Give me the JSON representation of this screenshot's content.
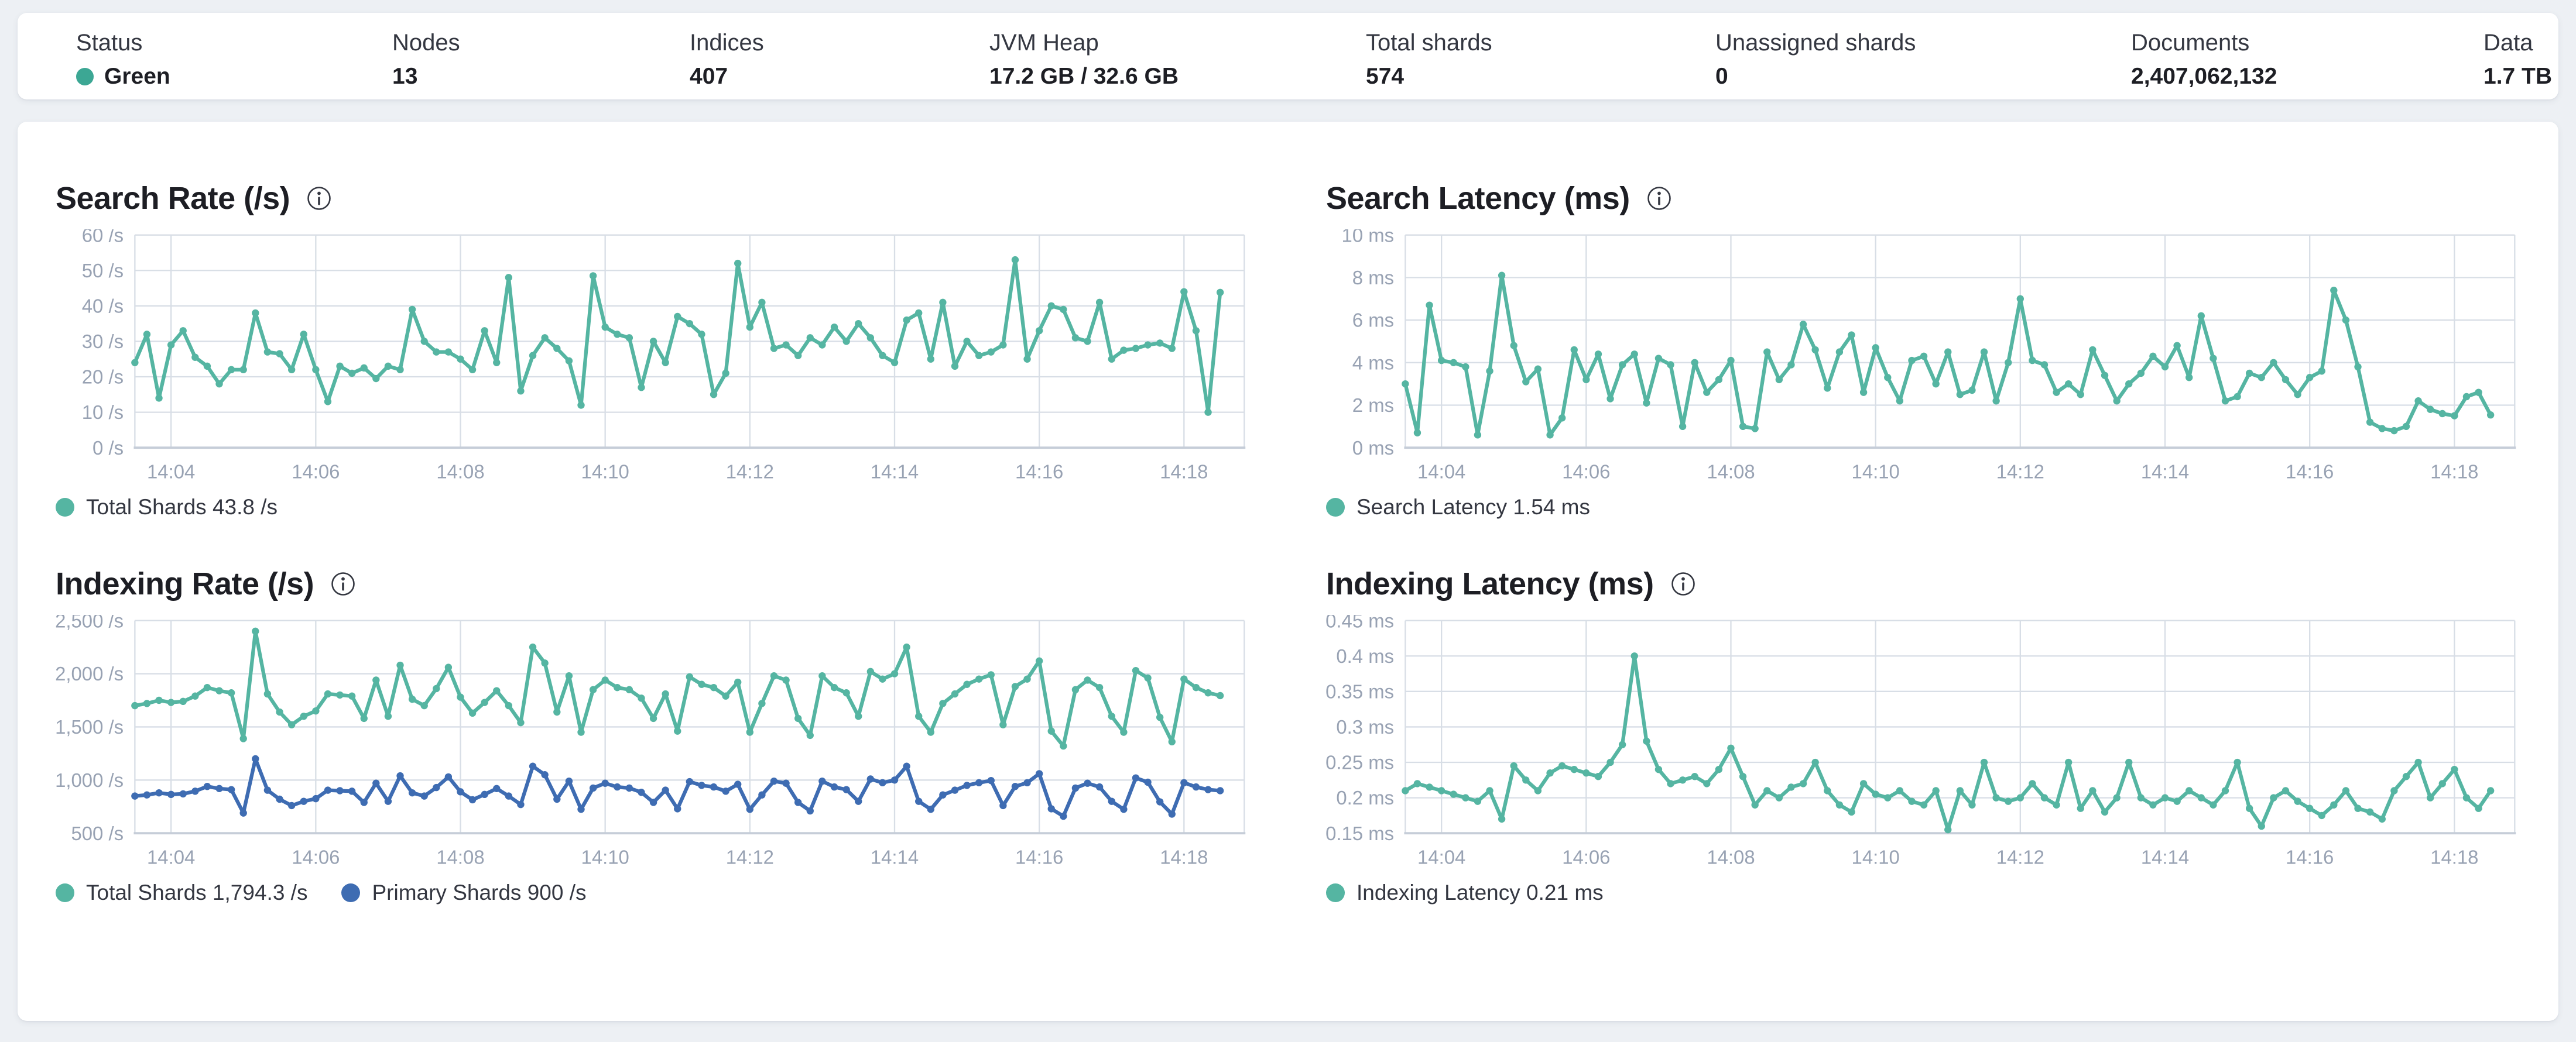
{
  "colors": {
    "teal": "#55B5A2",
    "blue": "#3E6CB2",
    "status_green": "#3CA794",
    "axis_text": "#98A2B3",
    "grid": "#D8DEE6",
    "axis_line": "#C6CDD8",
    "title": "#1D1E24",
    "label": "#343741"
  },
  "overview": {
    "stats": [
      {
        "label": "Status",
        "value": "Green",
        "type": "status"
      },
      {
        "label": "Nodes",
        "value": "13"
      },
      {
        "label": "Indices",
        "value": "407"
      },
      {
        "label": "JVM Heap",
        "value": "17.2 GB / 32.6 GB"
      },
      {
        "label": "Total shards",
        "value": "574"
      },
      {
        "label": "Unassigned shards",
        "value": "0"
      },
      {
        "label": "Documents",
        "value": "2,407,062,132"
      },
      {
        "label": "Data",
        "value": "1.7 TB"
      }
    ]
  },
  "chart_data": [
    {
      "type": "line",
      "title": "Search Rate (/s)",
      "ylabel": "/s",
      "y_min": 0,
      "y_max": 60,
      "y_ticks": [
        {
          "v": 60,
          "label": "60 /s"
        },
        {
          "v": 50,
          "label": "50 /s"
        },
        {
          "v": 40,
          "label": "40 /s"
        },
        {
          "v": 30,
          "label": "30 /s"
        },
        {
          "v": 20,
          "label": "20 /s"
        },
        {
          "v": 10,
          "label": "10 /s"
        },
        {
          "v": 0,
          "label": "0 /s"
        }
      ],
      "x_start": "14:03:30",
      "point_interval_s": 10,
      "x_span_s": 920,
      "x_ticks": [
        {
          "t": 30,
          "label": "14:04"
        },
        {
          "t": 150,
          "label": "14:06"
        },
        {
          "t": 270,
          "label": "14:08"
        },
        {
          "t": 390,
          "label": "14:10"
        },
        {
          "t": 510,
          "label": "14:12"
        },
        {
          "t": 630,
          "label": "14:14"
        },
        {
          "t": 750,
          "label": "14:16"
        },
        {
          "t": 870,
          "label": "14:18"
        }
      ],
      "grid": true,
      "legend_position": "bottom",
      "series": [
        {
          "name": "Total Shards",
          "current": "43.8 /s",
          "color": "#55B5A2",
          "values": [
            24,
            32,
            14,
            29,
            33,
            25.5,
            23,
            18,
            22,
            22,
            38,
            27,
            26.5,
            22,
            32,
            22,
            13,
            23,
            21,
            22.5,
            19.5,
            23,
            22,
            39,
            30,
            27,
            27,
            25,
            22,
            33,
            24,
            48,
            16,
            26,
            31,
            28,
            24.5,
            12,
            48.5,
            34,
            32,
            31,
            17,
            30,
            24,
            37,
            35,
            32,
            15,
            21,
            52,
            34,
            41,
            28,
            29,
            26,
            31,
            29,
            34,
            30,
            35,
            31,
            26,
            24,
            36,
            38,
            25,
            41,
            23,
            30,
            26,
            27,
            29,
            53,
            25,
            33,
            40,
            39,
            31,
            30,
            41,
            25,
            27.5,
            28,
            29,
            29.5,
            28,
            44,
            33,
            10,
            43.8
          ]
        }
      ],
      "legend": [
        {
          "label": "Total Shards 43.8 /s",
          "color": "#55B5A2"
        }
      ]
    },
    {
      "type": "line",
      "title": "Search Latency (ms)",
      "ylabel": "ms",
      "y_min": 0,
      "y_max": 10,
      "y_ticks": [
        {
          "v": 10,
          "label": "10 ms"
        },
        {
          "v": 8,
          "label": "8 ms"
        },
        {
          "v": 6,
          "label": "6 ms"
        },
        {
          "v": 4,
          "label": "4 ms"
        },
        {
          "v": 2,
          "label": "2 ms"
        },
        {
          "v": 0,
          "label": "0 ms"
        }
      ],
      "x_start": "14:03:30",
      "point_interval_s": 10,
      "x_span_s": 920,
      "x_ticks": [
        {
          "t": 30,
          "label": "14:04"
        },
        {
          "t": 150,
          "label": "14:06"
        },
        {
          "t": 270,
          "label": "14:08"
        },
        {
          "t": 390,
          "label": "14:10"
        },
        {
          "t": 510,
          "label": "14:12"
        },
        {
          "t": 630,
          "label": "14:14"
        },
        {
          "t": 750,
          "label": "14:16"
        },
        {
          "t": 870,
          "label": "14:18"
        }
      ],
      "grid": true,
      "legend_position": "bottom",
      "series": [
        {
          "name": "Search Latency",
          "current": "1.54 ms",
          "color": "#55B5A2",
          "values": [
            3.0,
            0.7,
            6.7,
            4.1,
            4.0,
            3.8,
            0.6,
            3.6,
            8.1,
            4.8,
            3.1,
            3.7,
            0.6,
            1.4,
            4.6,
            3.2,
            4.4,
            2.3,
            3.9,
            4.4,
            2.1,
            4.2,
            3.9,
            1.0,
            4.0,
            2.6,
            3.2,
            4.1,
            1.0,
            0.9,
            4.5,
            3.2,
            3.9,
            5.8,
            4.6,
            2.8,
            4.5,
            5.3,
            2.6,
            4.7,
            3.3,
            2.2,
            4.1,
            4.3,
            3.0,
            4.5,
            2.5,
            2.7,
            4.5,
            2.2,
            4.0,
            7.0,
            4.1,
            3.9,
            2.6,
            3.0,
            2.5,
            4.6,
            3.4,
            2.2,
            3.0,
            3.5,
            4.3,
            3.8,
            4.8,
            3.3,
            6.2,
            4.2,
            2.2,
            2.4,
            3.5,
            3.3,
            4.0,
            3.2,
            2.5,
            3.3,
            3.6,
            7.4,
            6.0,
            3.8,
            1.2,
            0.9,
            0.8,
            1.0,
            2.2,
            1.8,
            1.6,
            1.5,
            2.4,
            2.6,
            1.54
          ]
        }
      ],
      "legend": [
        {
          "label": "Search Latency 1.54 ms",
          "color": "#55B5A2"
        }
      ]
    },
    {
      "type": "line",
      "title": "Indexing Rate (/s)",
      "ylabel": "/s",
      "y_min": 500,
      "y_max": 2500,
      "y_ticks": [
        {
          "v": 2500,
          "label": "2,500 /s"
        },
        {
          "v": 2000,
          "label": "2,000 /s"
        },
        {
          "v": 1500,
          "label": "1,500 /s"
        },
        {
          "v": 1000,
          "label": "1,000 /s"
        },
        {
          "v": 500,
          "label": "500 /s"
        }
      ],
      "x_start": "14:03:30",
      "point_interval_s": 10,
      "x_span_s": 920,
      "x_ticks": [
        {
          "t": 30,
          "label": "14:04"
        },
        {
          "t": 150,
          "label": "14:06"
        },
        {
          "t": 270,
          "label": "14:08"
        },
        {
          "t": 390,
          "label": "14:10"
        },
        {
          "t": 510,
          "label": "14:12"
        },
        {
          "t": 630,
          "label": "14:14"
        },
        {
          "t": 750,
          "label": "14:16"
        },
        {
          "t": 870,
          "label": "14:18"
        }
      ],
      "grid": true,
      "legend_position": "bottom",
      "series": [
        {
          "name": "Total Shards",
          "current": "1,794.3 /s",
          "color": "#55B5A2",
          "values": [
            1700,
            1720,
            1750,
            1730,
            1740,
            1790,
            1870,
            1840,
            1820,
            1390,
            2400,
            1810,
            1640,
            1520,
            1600,
            1650,
            1810,
            1800,
            1790,
            1580,
            1940,
            1600,
            2080,
            1760,
            1700,
            1860,
            2060,
            1780,
            1630,
            1730,
            1840,
            1700,
            1540,
            2250,
            2100,
            1640,
            1980,
            1450,
            1850,
            1940,
            1870,
            1850,
            1770,
            1580,
            1810,
            1460,
            1970,
            1900,
            1870,
            1790,
            1920,
            1450,
            1720,
            1980,
            1940,
            1580,
            1420,
            1980,
            1870,
            1820,
            1600,
            2020,
            1950,
            2000,
            2250,
            1600,
            1450,
            1720,
            1810,
            1900,
            1950,
            1990,
            1520,
            1880,
            1950,
            2120,
            1460,
            1320,
            1850,
            1940,
            1870,
            1600,
            1450,
            2030,
            1960,
            1590,
            1360,
            1950,
            1870,
            1820,
            1794.3
          ]
        },
        {
          "name": "Primary Shards",
          "current": "900 /s",
          "color": "#3E6CB2",
          "values": [
            850,
            860,
            880,
            865,
            870,
            895,
            940,
            920,
            910,
            690,
            1200,
            905,
            820,
            760,
            800,
            825,
            905,
            900,
            895,
            790,
            970,
            800,
            1040,
            880,
            850,
            930,
            1030,
            890,
            815,
            865,
            920,
            850,
            770,
            1130,
            1050,
            820,
            990,
            725,
            925,
            970,
            935,
            925,
            885,
            790,
            905,
            730,
            985,
            950,
            935,
            895,
            960,
            725,
            860,
            990,
            970,
            790,
            710,
            990,
            935,
            910,
            800,
            1010,
            975,
            1000,
            1130,
            800,
            725,
            860,
            905,
            950,
            975,
            995,
            760,
            940,
            975,
            1060,
            730,
            660,
            925,
            970,
            935,
            800,
            725,
            1020,
            980,
            795,
            680,
            975,
            935,
            910,
            900
          ]
        }
      ],
      "legend": [
        {
          "label": "Total Shards 1,794.3 /s",
          "color": "#55B5A2"
        },
        {
          "label": "Primary Shards 900 /s",
          "color": "#3E6CB2"
        }
      ]
    },
    {
      "type": "line",
      "title": "Indexing Latency (ms)",
      "ylabel": "ms",
      "y_min": 0.15,
      "y_max": 0.45,
      "y_ticks": [
        {
          "v": 0.45,
          "label": "0.45 ms"
        },
        {
          "v": 0.4,
          "label": "0.4 ms"
        },
        {
          "v": 0.35,
          "label": "0.35 ms"
        },
        {
          "v": 0.3,
          "label": "0.3 ms"
        },
        {
          "v": 0.25,
          "label": "0.25 ms"
        },
        {
          "v": 0.2,
          "label": "0.2 ms"
        },
        {
          "v": 0.15,
          "label": "0.15 ms"
        }
      ],
      "x_start": "14:03:30",
      "point_interval_s": 10,
      "x_span_s": 920,
      "x_ticks": [
        {
          "t": 30,
          "label": "14:04"
        },
        {
          "t": 150,
          "label": "14:06"
        },
        {
          "t": 270,
          "label": "14:08"
        },
        {
          "t": 390,
          "label": "14:10"
        },
        {
          "t": 510,
          "label": "14:12"
        },
        {
          "t": 630,
          "label": "14:14"
        },
        {
          "t": 750,
          "label": "14:16"
        },
        {
          "t": 870,
          "label": "14:18"
        }
      ],
      "grid": true,
      "legend_position": "bottom",
      "series": [
        {
          "name": "Indexing Latency",
          "current": "0.21 ms",
          "color": "#55B5A2",
          "values": [
            0.21,
            0.22,
            0.215,
            0.21,
            0.205,
            0.2,
            0.195,
            0.21,
            0.17,
            0.245,
            0.225,
            0.21,
            0.235,
            0.245,
            0.24,
            0.235,
            0.23,
            0.25,
            0.275,
            0.4,
            0.28,
            0.24,
            0.22,
            0.225,
            0.23,
            0.22,
            0.24,
            0.27,
            0.23,
            0.19,
            0.21,
            0.2,
            0.215,
            0.22,
            0.25,
            0.21,
            0.19,
            0.18,
            0.22,
            0.205,
            0.2,
            0.21,
            0.195,
            0.19,
            0.21,
            0.155,
            0.21,
            0.19,
            0.25,
            0.2,
            0.195,
            0.2,
            0.22,
            0.2,
            0.19,
            0.25,
            0.185,
            0.21,
            0.18,
            0.2,
            0.25,
            0.2,
            0.19,
            0.2,
            0.195,
            0.21,
            0.2,
            0.19,
            0.21,
            0.25,
            0.185,
            0.16,
            0.2,
            0.21,
            0.195,
            0.185,
            0.175,
            0.19,
            0.21,
            0.185,
            0.18,
            0.17,
            0.21,
            0.23,
            0.25,
            0.2,
            0.22,
            0.24,
            0.2,
            0.185,
            0.21
          ]
        }
      ],
      "legend": [
        {
          "label": "Indexing Latency 0.21 ms",
          "color": "#55B5A2"
        }
      ]
    }
  ]
}
